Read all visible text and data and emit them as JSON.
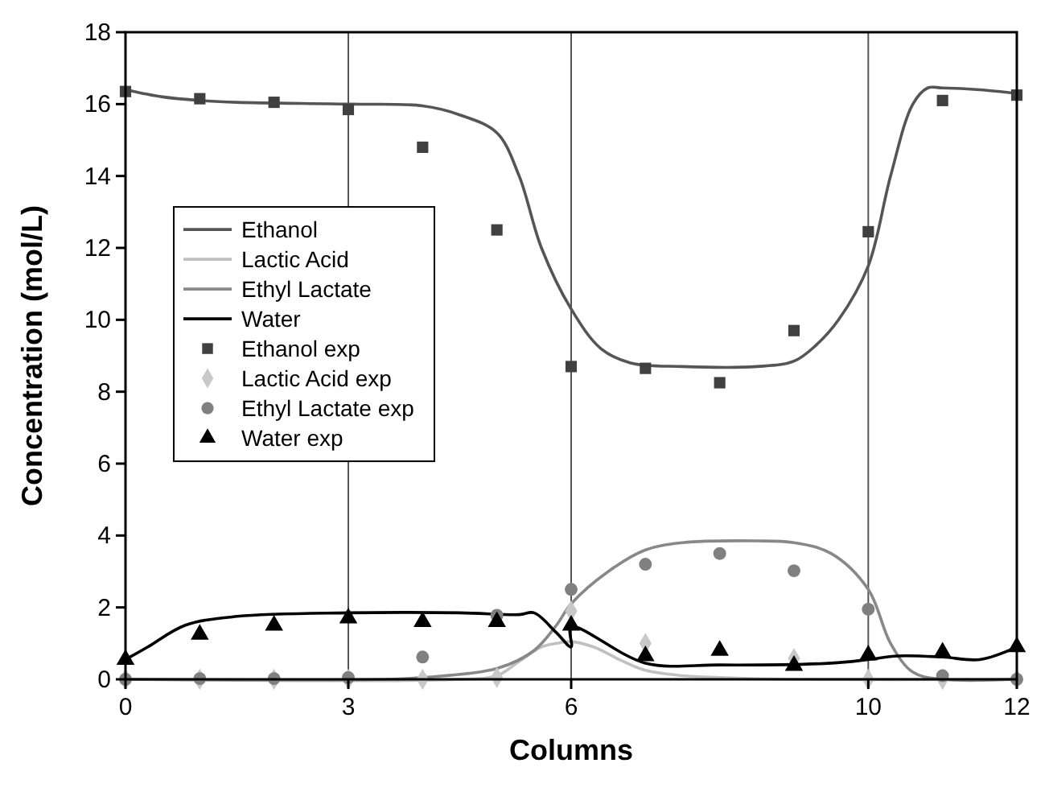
{
  "chart_data": {
    "type": "line",
    "xlabel": "Columns",
    "ylabel": "Concentration (mol/L)",
    "xlim": [
      0,
      12
    ],
    "xticks": [
      0,
      3,
      6,
      10,
      12
    ],
    "ylim": [
      0,
      18
    ],
    "yticks": [
      0,
      2,
      4,
      6,
      8,
      10,
      12,
      14,
      16,
      18
    ],
    "grid": false,
    "legend": "left",
    "line_style": "solid",
    "ref_lines": [
      {
        "axis": "x",
        "value": 3,
        "color": "#555555"
      },
      {
        "axis": "x",
        "value": 6,
        "color": "#555555"
      },
      {
        "axis": "x",
        "value": 10,
        "color": "#555555"
      }
    ],
    "series": [
      {
        "name": "Ethanol",
        "type": "line",
        "marker": "none",
        "color": "#555555",
        "x": [
          0,
          0.5,
          1,
          1.5,
          3,
          4,
          4.5,
          5,
          5.3,
          5.6,
          6,
          6.4,
          6.8,
          7.5,
          8.5,
          9,
          9.3,
          9.6,
          10,
          10.3,
          10.6,
          10.8,
          11,
          11.5,
          12
        ],
        "values": [
          16.4,
          16.2,
          16.1,
          16.05,
          16,
          15.95,
          15.7,
          15.2,
          14,
          12,
          10.3,
          9.2,
          8.8,
          8.7,
          8.7,
          8.85,
          9.3,
          10,
          11.5,
          14,
          16,
          16.45,
          16.45,
          16.4,
          16.3
        ]
      },
      {
        "name": "Lactic Acid",
        "type": "line",
        "marker": "none",
        "color": "#c0c0c0",
        "x": [
          0,
          4.5,
          5,
          5.3,
          5.6,
          5.8,
          6,
          6.3,
          6.7,
          7,
          7.5,
          8,
          9,
          12
        ],
        "values": [
          0,
          0,
          0.1,
          0.5,
          0.9,
          1,
          1.05,
          0.9,
          0.5,
          0.25,
          0.1,
          0.05,
          0,
          0
        ]
      },
      {
        "name": "Ethyl Lactate",
        "type": "line",
        "marker": "none",
        "color": "#888888",
        "x": [
          0,
          3.5,
          4,
          5,
          5.5,
          5.8,
          6,
          6.5,
          7,
          7.5,
          8.5,
          9,
          9.5,
          10,
          10.3,
          10.6,
          11,
          12
        ],
        "values": [
          0,
          0,
          0.05,
          0.3,
          0.8,
          1.5,
          2.1,
          3,
          3.6,
          3.8,
          3.85,
          3.8,
          3.5,
          2.5,
          1,
          0.2,
          0,
          0
        ]
      },
      {
        "name": "Water",
        "type": "line",
        "marker": "none",
        "color": "#000000",
        "x": [
          0,
          0.3,
          0.8,
          1.5,
          3,
          4.5,
          5.3,
          5.5,
          5.8,
          6,
          6,
          7,
          8,
          9.5,
          10,
          10.4,
          11,
          11.5,
          12
        ],
        "values": [
          0.55,
          0.9,
          1.5,
          1.75,
          1.85,
          1.85,
          1.8,
          1.85,
          1.3,
          0.9,
          1.45,
          0.45,
          0.4,
          0.45,
          0.55,
          0.65,
          0.62,
          0.55,
          0.9
        ]
      },
      {
        "name": "Ethanol exp",
        "type": "scatter",
        "marker": "square",
        "color": "#404040",
        "x": [
          0,
          1,
          2,
          3,
          4,
          5,
          6,
          7,
          8,
          9,
          10,
          11,
          12
        ],
        "values": [
          16.35,
          16.15,
          16.05,
          15.85,
          14.8,
          12.5,
          8.7,
          8.65,
          8.25,
          9.7,
          12.45,
          16.1,
          16.25
        ]
      },
      {
        "name": "Lactic Acid exp",
        "type": "scatter",
        "marker": "diamond",
        "color": "#c8c8c8",
        "x": [
          0,
          1,
          2,
          3,
          4,
          5,
          6,
          7,
          8,
          9,
          10,
          11,
          12
        ],
        "values": [
          0,
          0,
          0,
          0,
          0,
          0.05,
          1.9,
          1,
          null,
          0.58,
          0,
          0,
          0
        ]
      },
      {
        "name": "Ethyl Lactate exp",
        "type": "scatter",
        "marker": "circle",
        "color": "#808080",
        "x": [
          0,
          1,
          2,
          3,
          4,
          5,
          6,
          7,
          8,
          9,
          10,
          11,
          12
        ],
        "values": [
          0,
          0.02,
          0.02,
          0.05,
          0.62,
          1.78,
          2.5,
          3.2,
          3.5,
          3.02,
          1.95,
          0.1,
          0
        ]
      },
      {
        "name": "Water exp",
        "type": "scatter",
        "marker": "triangle",
        "color": "#000000",
        "x": [
          0,
          1,
          2,
          3,
          4,
          5,
          6,
          7,
          8,
          9,
          10,
          11,
          12
        ],
        "values": [
          0.55,
          1.25,
          1.5,
          1.7,
          1.6,
          1.6,
          1.5,
          0.65,
          0.8,
          0.38,
          0.67,
          0.75,
          0.9
        ]
      }
    ]
  }
}
